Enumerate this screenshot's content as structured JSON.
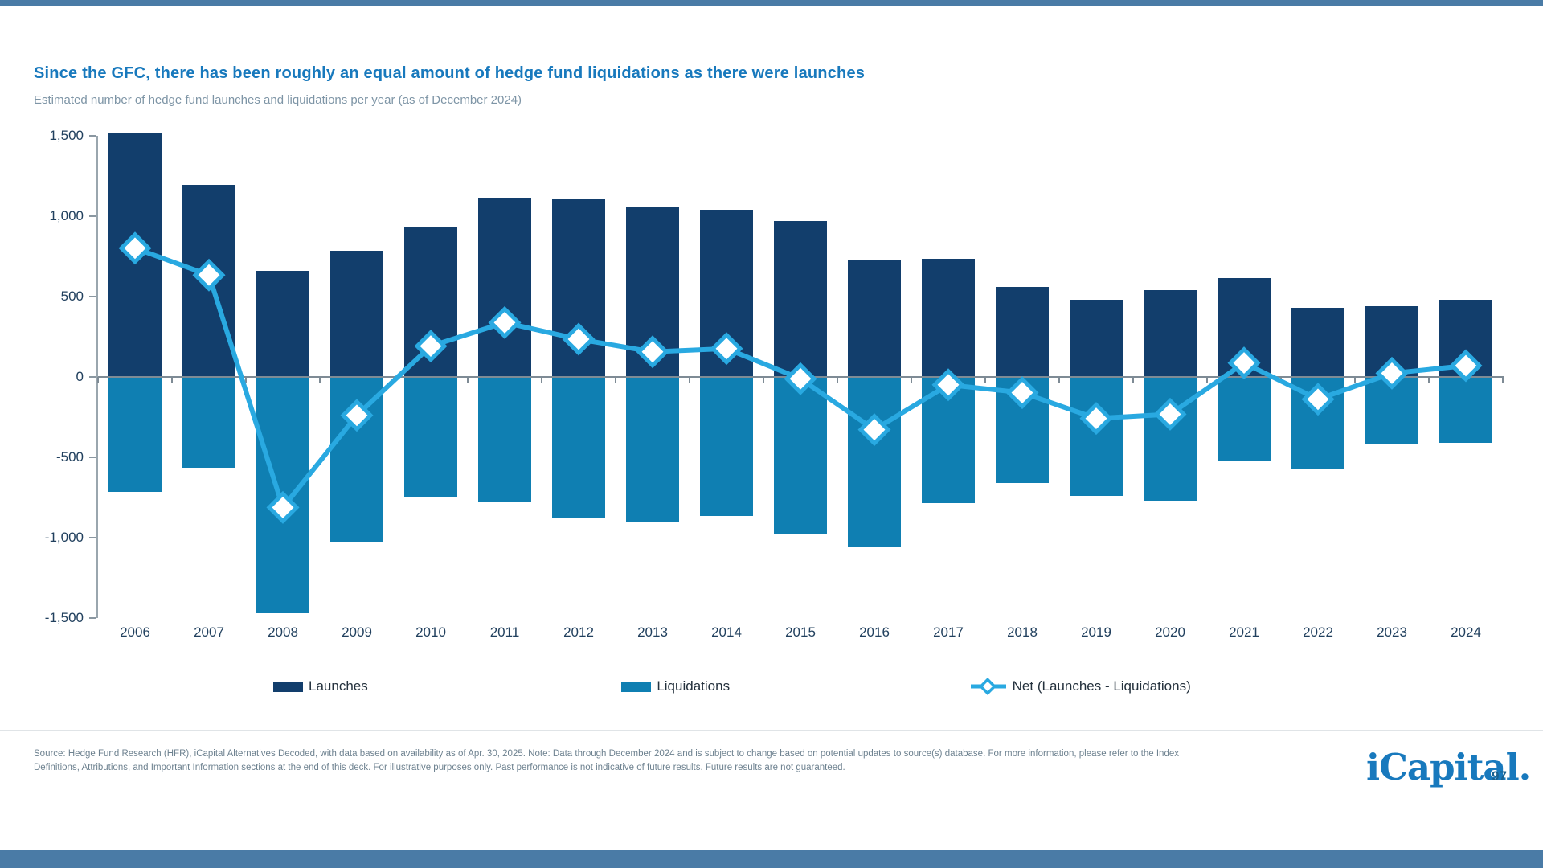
{
  "page": {
    "title": "Since the GFC, there has been roughly an equal amount of hedge fund liquidations as there were launches",
    "subtitle": "Estimated number of hedge fund launches and liquidations per year (as of December 2024)",
    "footer": "Source: Hedge Fund Research (HFR), iCapital Alternatives Decoded, with data based on availability as of Apr. 30, 2025. Note: Data through December 2024 and is subject to change based on potential updates to source(s) database. For more information, please refer to the Index Definitions, Attributions, and Important Information sections at the end of this deck. For illustrative purposes only. Past performance is not indicative of future results. Future results are not guaranteed.",
    "logo_text": "iCapital.",
    "page_number": "97"
  },
  "colors": {
    "title_blue": "#1879bd",
    "subtitle_gray": "#7e95a6",
    "launches_bar": "#123e6c",
    "liquidations_bar": "#0f7fb2",
    "net_line": "#29a9e1",
    "axis_text": "#21405e",
    "zero_line_gray": "#7e8b95",
    "accent_band": "#4a7ba6"
  },
  "chart_data": {
    "type": "bar",
    "title": "Estimated number of hedge fund launches and liquidations per year (as of December 2024)",
    "categories": [
      "2006",
      "2007",
      "2008",
      "2009",
      "2010",
      "2011",
      "2012",
      "2013",
      "2014",
      "2015",
      "2016",
      "2017",
      "2018",
      "2019",
      "2020",
      "2021",
      "2022",
      "2023",
      "2024"
    ],
    "series": [
      {
        "name": "Launches",
        "type": "bar",
        "color": "#123e6c",
        "values": [
          1518,
          1197,
          659,
          784,
          935,
          1113,
          1108,
          1060,
          1040,
          968,
          729,
          735,
          561,
          480,
          538,
          614,
          432,
          438,
          480
        ]
      },
      {
        "name": "Liquidations",
        "type": "bar",
        "color": "#0f7fb2",
        "values": [
          -717,
          -563,
          -1471,
          -1023,
          -743,
          -775,
          -873,
          -904,
          -864,
          -979,
          -1057,
          -784,
          -659,
          -738,
          -770,
          -527,
          -571,
          -415,
          -410
        ]
      },
      {
        "name": "Net (Launches - Liquidations)",
        "type": "line",
        "color": "#29a9e1",
        "marker": "diamond",
        "values": [
          801,
          634,
          -812,
          -239,
          192,
          338,
          235,
          156,
          176,
          -11,
          -328,
          -49,
          -98,
          -258,
          -232,
          87,
          -139,
          23,
          70
        ]
      }
    ],
    "xlabel": "",
    "ylabel": "",
    "ylim": [
      -1500,
      1500
    ],
    "yticks": [
      1500,
      1000,
      500,
      0,
      -500,
      -1000,
      -1500
    ],
    "grid": false,
    "legend_position": "bottom"
  }
}
